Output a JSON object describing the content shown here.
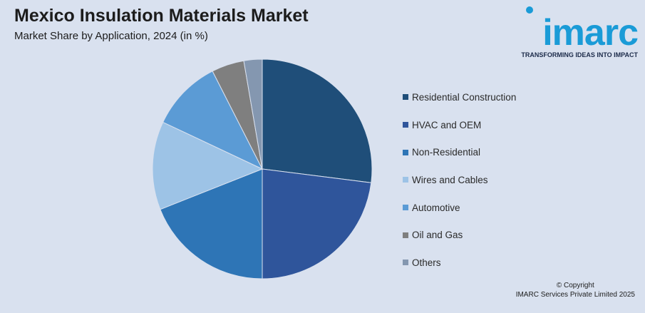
{
  "title": "Mexico Insulation Materials Market",
  "subtitle": "Market Share by Application, 2024 (in %)",
  "logo": {
    "word": "imarc",
    "tagline": "TRANSFORMING IDEAS INTO IMPACT",
    "color": "#1a9bd7"
  },
  "copyright": {
    "line1": "© Copyright",
    "line2": "IMARC Services Private Limited 2025"
  },
  "chart_data": {
    "type": "pie",
    "title": "",
    "legend_position": "right",
    "labels": [
      "Residential Construction",
      "HVAC and OEM",
      "Non-Residential",
      "Wires and Cables",
      "Automotive",
      "Oil and Gas",
      "Others"
    ],
    "values": [
      27,
      23,
      19,
      13,
      10.5,
      4.8,
      2.7
    ],
    "colors": [
      "#1f4e79",
      "#2f559b",
      "#2e75b6",
      "#9dc3e6",
      "#5b9bd5",
      "#7f7f7f",
      "#8497b0"
    ]
  }
}
